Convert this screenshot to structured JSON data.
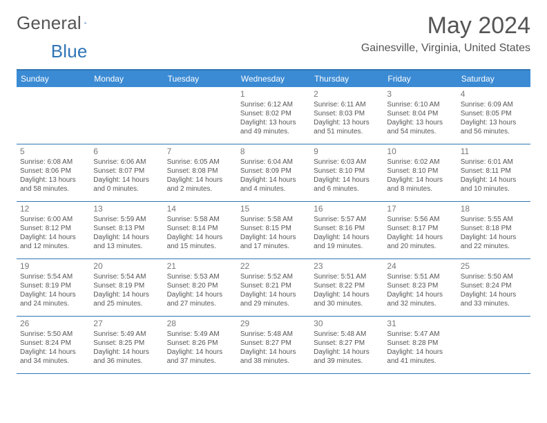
{
  "brand": {
    "part1": "General",
    "part2": "Blue"
  },
  "title": "May 2024",
  "location": "Gainesville, Virginia, United States",
  "colors": {
    "accent": "#3b8bd4",
    "border": "#2f75b5",
    "text": "#555555"
  },
  "weekdays": [
    "Sunday",
    "Monday",
    "Tuesday",
    "Wednesday",
    "Thursday",
    "Friday",
    "Saturday"
  ],
  "weeks": [
    [
      null,
      null,
      null,
      {
        "n": "1",
        "sr": "Sunrise: 6:12 AM",
        "ss": "Sunset: 8:02 PM",
        "d1": "Daylight: 13 hours",
        "d2": "and 49 minutes."
      },
      {
        "n": "2",
        "sr": "Sunrise: 6:11 AM",
        "ss": "Sunset: 8:03 PM",
        "d1": "Daylight: 13 hours",
        "d2": "and 51 minutes."
      },
      {
        "n": "3",
        "sr": "Sunrise: 6:10 AM",
        "ss": "Sunset: 8:04 PM",
        "d1": "Daylight: 13 hours",
        "d2": "and 54 minutes."
      },
      {
        "n": "4",
        "sr": "Sunrise: 6:09 AM",
        "ss": "Sunset: 8:05 PM",
        "d1": "Daylight: 13 hours",
        "d2": "and 56 minutes."
      }
    ],
    [
      {
        "n": "5",
        "sr": "Sunrise: 6:08 AM",
        "ss": "Sunset: 8:06 PM",
        "d1": "Daylight: 13 hours",
        "d2": "and 58 minutes."
      },
      {
        "n": "6",
        "sr": "Sunrise: 6:06 AM",
        "ss": "Sunset: 8:07 PM",
        "d1": "Daylight: 14 hours",
        "d2": "and 0 minutes."
      },
      {
        "n": "7",
        "sr": "Sunrise: 6:05 AM",
        "ss": "Sunset: 8:08 PM",
        "d1": "Daylight: 14 hours",
        "d2": "and 2 minutes."
      },
      {
        "n": "8",
        "sr": "Sunrise: 6:04 AM",
        "ss": "Sunset: 8:09 PM",
        "d1": "Daylight: 14 hours",
        "d2": "and 4 minutes."
      },
      {
        "n": "9",
        "sr": "Sunrise: 6:03 AM",
        "ss": "Sunset: 8:10 PM",
        "d1": "Daylight: 14 hours",
        "d2": "and 6 minutes."
      },
      {
        "n": "10",
        "sr": "Sunrise: 6:02 AM",
        "ss": "Sunset: 8:10 PM",
        "d1": "Daylight: 14 hours",
        "d2": "and 8 minutes."
      },
      {
        "n": "11",
        "sr": "Sunrise: 6:01 AM",
        "ss": "Sunset: 8:11 PM",
        "d1": "Daylight: 14 hours",
        "d2": "and 10 minutes."
      }
    ],
    [
      {
        "n": "12",
        "sr": "Sunrise: 6:00 AM",
        "ss": "Sunset: 8:12 PM",
        "d1": "Daylight: 14 hours",
        "d2": "and 12 minutes."
      },
      {
        "n": "13",
        "sr": "Sunrise: 5:59 AM",
        "ss": "Sunset: 8:13 PM",
        "d1": "Daylight: 14 hours",
        "d2": "and 13 minutes."
      },
      {
        "n": "14",
        "sr": "Sunrise: 5:58 AM",
        "ss": "Sunset: 8:14 PM",
        "d1": "Daylight: 14 hours",
        "d2": "and 15 minutes."
      },
      {
        "n": "15",
        "sr": "Sunrise: 5:58 AM",
        "ss": "Sunset: 8:15 PM",
        "d1": "Daylight: 14 hours",
        "d2": "and 17 minutes."
      },
      {
        "n": "16",
        "sr": "Sunrise: 5:57 AM",
        "ss": "Sunset: 8:16 PM",
        "d1": "Daylight: 14 hours",
        "d2": "and 19 minutes."
      },
      {
        "n": "17",
        "sr": "Sunrise: 5:56 AM",
        "ss": "Sunset: 8:17 PM",
        "d1": "Daylight: 14 hours",
        "d2": "and 20 minutes."
      },
      {
        "n": "18",
        "sr": "Sunrise: 5:55 AM",
        "ss": "Sunset: 8:18 PM",
        "d1": "Daylight: 14 hours",
        "d2": "and 22 minutes."
      }
    ],
    [
      {
        "n": "19",
        "sr": "Sunrise: 5:54 AM",
        "ss": "Sunset: 8:19 PM",
        "d1": "Daylight: 14 hours",
        "d2": "and 24 minutes."
      },
      {
        "n": "20",
        "sr": "Sunrise: 5:54 AM",
        "ss": "Sunset: 8:19 PM",
        "d1": "Daylight: 14 hours",
        "d2": "and 25 minutes."
      },
      {
        "n": "21",
        "sr": "Sunrise: 5:53 AM",
        "ss": "Sunset: 8:20 PM",
        "d1": "Daylight: 14 hours",
        "d2": "and 27 minutes."
      },
      {
        "n": "22",
        "sr": "Sunrise: 5:52 AM",
        "ss": "Sunset: 8:21 PM",
        "d1": "Daylight: 14 hours",
        "d2": "and 29 minutes."
      },
      {
        "n": "23",
        "sr": "Sunrise: 5:51 AM",
        "ss": "Sunset: 8:22 PM",
        "d1": "Daylight: 14 hours",
        "d2": "and 30 minutes."
      },
      {
        "n": "24",
        "sr": "Sunrise: 5:51 AM",
        "ss": "Sunset: 8:23 PM",
        "d1": "Daylight: 14 hours",
        "d2": "and 32 minutes."
      },
      {
        "n": "25",
        "sr": "Sunrise: 5:50 AM",
        "ss": "Sunset: 8:24 PM",
        "d1": "Daylight: 14 hours",
        "d2": "and 33 minutes."
      }
    ],
    [
      {
        "n": "26",
        "sr": "Sunrise: 5:50 AM",
        "ss": "Sunset: 8:24 PM",
        "d1": "Daylight: 14 hours",
        "d2": "and 34 minutes."
      },
      {
        "n": "27",
        "sr": "Sunrise: 5:49 AM",
        "ss": "Sunset: 8:25 PM",
        "d1": "Daylight: 14 hours",
        "d2": "and 36 minutes."
      },
      {
        "n": "28",
        "sr": "Sunrise: 5:49 AM",
        "ss": "Sunset: 8:26 PM",
        "d1": "Daylight: 14 hours",
        "d2": "and 37 minutes."
      },
      {
        "n": "29",
        "sr": "Sunrise: 5:48 AM",
        "ss": "Sunset: 8:27 PM",
        "d1": "Daylight: 14 hours",
        "d2": "and 38 minutes."
      },
      {
        "n": "30",
        "sr": "Sunrise: 5:48 AM",
        "ss": "Sunset: 8:27 PM",
        "d1": "Daylight: 14 hours",
        "d2": "and 39 minutes."
      },
      {
        "n": "31",
        "sr": "Sunrise: 5:47 AM",
        "ss": "Sunset: 8:28 PM",
        "d1": "Daylight: 14 hours",
        "d2": "and 41 minutes."
      },
      null
    ]
  ]
}
